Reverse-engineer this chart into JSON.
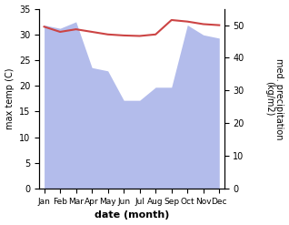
{
  "months": [
    "Jan",
    "Feb",
    "Mar",
    "Apr",
    "May",
    "Jun",
    "Jul",
    "Aug",
    "Sep",
    "Oct",
    "Nov",
    "Dec"
  ],
  "month_x": [
    0,
    1,
    2,
    3,
    4,
    5,
    6,
    7,
    8,
    9,
    10,
    11
  ],
  "temperature": [
    31.5,
    30.5,
    31.0,
    30.5,
    30.0,
    29.8,
    29.7,
    30.0,
    32.8,
    32.5,
    32.0,
    31.8
  ],
  "precipitation": [
    50,
    49,
    51,
    37,
    36,
    27,
    27,
    31,
    31,
    50,
    47,
    46
  ],
  "temp_color": "#cc4444",
  "precip_color": "#b3bceb",
  "ylim_left": [
    0,
    35
  ],
  "ylim_right": [
    0,
    55
  ],
  "ylabel_left": "max temp (C)",
  "ylabel_right": "med. precipitation\n(kg/m2)",
  "xlabel": "date (month)",
  "temp_linewidth": 1.5,
  "left_yticks": [
    0,
    5,
    10,
    15,
    20,
    25,
    30,
    35
  ],
  "right_yticks": [
    0,
    10,
    20,
    30,
    40,
    50
  ]
}
